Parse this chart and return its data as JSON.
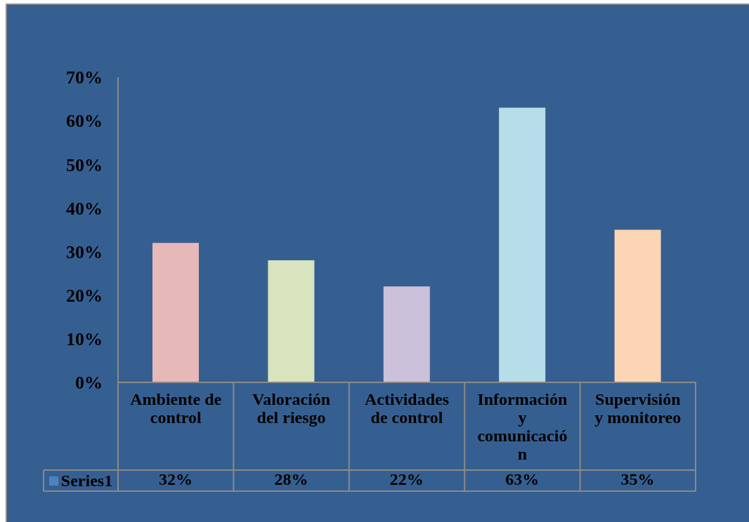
{
  "chart_data": {
    "type": "bar",
    "categories": [
      "Ambiente de control",
      "Valoración del riesgo",
      "Actividades de control",
      "Información y comunicación",
      "Supervisión y monitoreo"
    ],
    "series": [
      {
        "name": "Series1",
        "color": "#4f81bd",
        "colors": [
          "#e6b9b8",
          "#d7e4bd",
          "#ccc1da",
          "#b7dee8",
          "#fcd5b5"
        ],
        "values": [
          32,
          28,
          22,
          63,
          35
        ],
        "value_labels": [
          "32%",
          "28%",
          "22%",
          "63%",
          "35%"
        ]
      }
    ],
    "ylim": [
      0,
      70
    ],
    "yticks": [
      {
        "value": 0,
        "label": "0%"
      },
      {
        "value": 10,
        "label": "10%"
      },
      {
        "value": 20,
        "label": "20%"
      },
      {
        "value": 30,
        "label": "30%"
      },
      {
        "value": 40,
        "label": "40%"
      },
      {
        "value": 50,
        "label": "50%"
      },
      {
        "value": 60,
        "label": "60%"
      },
      {
        "value": 70,
        "label": "70%"
      }
    ],
    "legend": "bottom left"
  }
}
